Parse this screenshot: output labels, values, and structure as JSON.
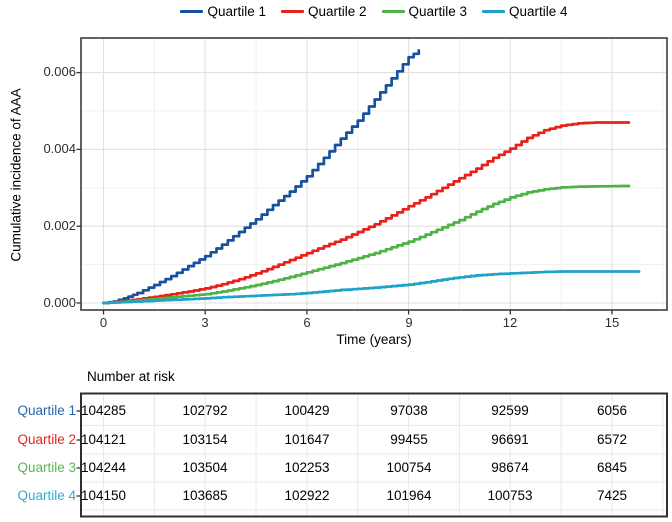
{
  "palette": {
    "quartile1": "#17509E",
    "quartile2": "#E8211A",
    "quartile3": "#4FB246",
    "quartile4": "#1FA3C8",
    "grid_major": "#E0E0E0",
    "grid_minor": "#F0F0F0",
    "panel_border": "#3B3B3B",
    "tick_text": "#2E2E2E"
  },
  "legend": {
    "items": [
      {
        "label": "Quartile 1",
        "color": "#17509E"
      },
      {
        "label": "Quartile 2",
        "color": "#E8211A"
      },
      {
        "label": "Quartile 3",
        "color": "#4FB246"
      },
      {
        "label": "Quartile 4",
        "color": "#1FA3C8"
      }
    ]
  },
  "chart_data": {
    "type": "line",
    "title": "",
    "xlabel": "Time (years)",
    "ylabel": "Cumulative incidence of AAA",
    "x_ticks": [
      0,
      3,
      6,
      9,
      12,
      15
    ],
    "x_tick_labels": [
      "0",
      "3",
      "6",
      "9",
      "12",
      "15"
    ],
    "x_minor": [
      1.5,
      4.5,
      7.5,
      10.5,
      13.5,
      16.5
    ],
    "y_ticks": [
      0,
      0.002,
      0.004,
      0.006
    ],
    "y_tick_labels": [
      "0.000",
      "0.002",
      "0.004",
      "0.006"
    ],
    "y_minor": [
      0.001,
      0.003,
      0.005
    ],
    "xlim": [
      -0.66,
      16.62
    ],
    "ylim": [
      -0.00018,
      0.0069
    ],
    "grid": true,
    "legend_position": "top",
    "series": [
      {
        "name": "Quartile 1",
        "color": "#17509E",
        "points": [
          [
            0,
            0
          ],
          [
            0.3,
            4e-05
          ],
          [
            0.6,
            0.00012
          ],
          [
            1,
            0.00026
          ],
          [
            1.5,
            0.00047
          ],
          [
            2,
            0.0007
          ],
          [
            2.5,
            0.00096
          ],
          [
            3,
            0.00122
          ],
          [
            3.5,
            0.00152
          ],
          [
            4,
            0.00185
          ],
          [
            4.5,
            0.00218
          ],
          [
            5,
            0.00255
          ],
          [
            5.5,
            0.0029
          ],
          [
            6,
            0.0033
          ],
          [
            6.5,
            0.00378
          ],
          [
            7,
            0.00428
          ],
          [
            7.5,
            0.00475
          ],
          [
            8,
            0.0053
          ],
          [
            8.5,
            0.00585
          ],
          [
            9,
            0.0064
          ],
          [
            9.3,
            0.00658
          ]
        ]
      },
      {
        "name": "Quartile 2",
        "color": "#E8211A",
        "points": [
          [
            0,
            0
          ],
          [
            0.5,
            4e-05
          ],
          [
            1,
            0.0001
          ],
          [
            1.5,
            0.00016
          ],
          [
            2,
            0.00023
          ],
          [
            2.5,
            0.0003
          ],
          [
            3,
            0.00038
          ],
          [
            3.5,
            0.00049
          ],
          [
            4,
            0.00062
          ],
          [
            4.5,
            0.00077
          ],
          [
            5,
            0.00094
          ],
          [
            5.5,
            0.00112
          ],
          [
            6,
            0.0013
          ],
          [
            6.5,
            0.00148
          ],
          [
            7,
            0.00165
          ],
          [
            7.5,
            0.00185
          ],
          [
            8,
            0.00205
          ],
          [
            8.5,
            0.00228
          ],
          [
            9,
            0.00252
          ],
          [
            9.5,
            0.00275
          ],
          [
            10,
            0.003
          ],
          [
            10.5,
            0.00325
          ],
          [
            11,
            0.0035
          ],
          [
            11.5,
            0.00378
          ],
          [
            12,
            0.00402
          ],
          [
            12.5,
            0.0043
          ],
          [
            13,
            0.0045
          ],
          [
            13.5,
            0.00462
          ],
          [
            14,
            0.00468
          ],
          [
            14.5,
            0.0047
          ],
          [
            15.5,
            0.0047
          ]
        ]
      },
      {
        "name": "Quartile 3",
        "color": "#4FB246",
        "points": [
          [
            0,
            0
          ],
          [
            0.5,
            3e-05
          ],
          [
            1,
            7e-05
          ],
          [
            1.5,
            0.00011
          ],
          [
            2,
            0.00015
          ],
          [
            2.5,
            0.00019
          ],
          [
            3,
            0.00023
          ],
          [
            3.5,
            0.0003
          ],
          [
            4,
            0.00038
          ],
          [
            4.5,
            0.00047
          ],
          [
            5,
            0.00057
          ],
          [
            5.5,
            0.00068
          ],
          [
            6,
            0.0008
          ],
          [
            6.5,
            0.00092
          ],
          [
            7,
            0.00104
          ],
          [
            7.5,
            0.00117
          ],
          [
            8,
            0.0013
          ],
          [
            8.5,
            0.00145
          ],
          [
            9,
            0.0016
          ],
          [
            9.5,
            0.00178
          ],
          [
            10,
            0.00197
          ],
          [
            10.5,
            0.00216
          ],
          [
            11,
            0.00238
          ],
          [
            11.5,
            0.00258
          ],
          [
            12,
            0.00275
          ],
          [
            12.5,
            0.00288
          ],
          [
            13,
            0.00296
          ],
          [
            13.5,
            0.00301
          ],
          [
            14,
            0.00303
          ],
          [
            15.5,
            0.00305
          ]
        ]
      },
      {
        "name": "Quartile 4",
        "color": "#1FA3C8",
        "points": [
          [
            0,
            0
          ],
          [
            0.5,
            2e-05
          ],
          [
            1,
            4e-05
          ],
          [
            1.5,
            6e-05
          ],
          [
            2,
            8e-05
          ],
          [
            2.5,
            0.0001
          ],
          [
            3,
            0.00012
          ],
          [
            3.5,
            0.00015
          ],
          [
            4,
            0.00017
          ],
          [
            4.5,
            0.00019
          ],
          [
            5,
            0.00021
          ],
          [
            5.5,
            0.00023
          ],
          [
            6,
            0.00026
          ],
          [
            6.5,
            0.0003
          ],
          [
            7,
            0.00034
          ],
          [
            7.5,
            0.00037
          ],
          [
            8,
            0.0004
          ],
          [
            8.5,
            0.00044
          ],
          [
            9,
            0.00048
          ],
          [
            9.5,
            0.00054
          ],
          [
            10,
            0.00061
          ],
          [
            10.5,
            0.00067
          ],
          [
            11,
            0.00072
          ],
          [
            11.5,
            0.00075
          ],
          [
            12,
            0.00077
          ],
          [
            12.5,
            0.00079
          ],
          [
            13,
            0.00081
          ],
          [
            13.5,
            0.00082
          ],
          [
            15.8,
            0.00082
          ]
        ]
      }
    ]
  },
  "risk_table": {
    "title": "Number at risk",
    "time_columns": [
      0,
      3,
      6,
      9,
      12,
      15
    ],
    "rows": [
      {
        "label": "Quartile 1",
        "color": "#2666B0",
        "values": [
          "104285",
          "102792",
          "100429",
          "97038",
          "92599",
          "6056"
        ]
      },
      {
        "label": "Quartile 2",
        "color": "#E2251F",
        "values": [
          "104121",
          "103154",
          "101647",
          "99455",
          "96691",
          "6572"
        ]
      },
      {
        "label": "Quartile 3",
        "color": "#57B84F",
        "values": [
          "104244",
          "103504",
          "102253",
          "100754",
          "98674",
          "6845"
        ]
      },
      {
        "label": "Quartile 4",
        "color": "#31ADD4",
        "values": [
          "104150",
          "103685",
          "102922",
          "101964",
          "100753",
          "7425"
        ]
      }
    ]
  }
}
